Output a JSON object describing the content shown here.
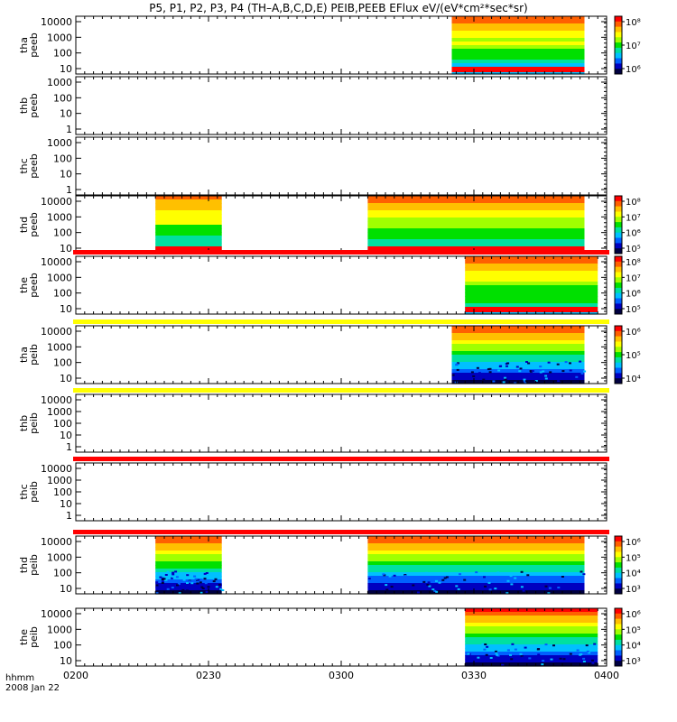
{
  "title": "P5, P1, P2, P3, P4 (TH–A,B,C,D,E) PEIB,PEEB EFlux eV/(eV*cm²*sec*sr)",
  "footer": {
    "label": "hhmm",
    "date": "2008 Jan 22"
  },
  "chart_data": {
    "type": "heatmap",
    "x_ticks": [
      "0200",
      "0230",
      "0300",
      "0330",
      "0400"
    ],
    "xlim": [
      "0200",
      "0400"
    ],
    "panels": [
      {
        "label_top": "tha",
        "label_bottom": "peeb",
        "y_ticks": [
          "10000",
          "1000",
          "100",
          "10"
        ],
        "cbar_ticks": [
          "10⁸",
          "10⁷",
          "10⁶"
        ],
        "has_data": true,
        "segments": [
          [
            "0325",
            "0356"
          ],
          [
            "0356",
            "0357"
          ],
          [
            "0357",
            "0356"
          ]
        ],
        "data_range": [
          "0325",
          "0355"
        ],
        "strip": null
      },
      {
        "label_top": "thb",
        "label_bottom": "peeb",
        "y_ticks": [
          "1000",
          "100",
          "10",
          "1"
        ],
        "cbar_ticks": [],
        "has_data": false,
        "strip": null
      },
      {
        "label_top": "thc",
        "label_bottom": "peeb",
        "y_ticks": [
          "1000",
          "100",
          "10",
          "1"
        ],
        "cbar_ticks": [],
        "has_data": false,
        "strip": null
      },
      {
        "label_top": "thd",
        "label_bottom": "peeb",
        "y_ticks": [
          "10000",
          "1000",
          "100",
          "10"
        ],
        "cbar_ticks": [
          "10⁸",
          "10⁷",
          "10⁶",
          "10⁵"
        ],
        "has_data": true,
        "data_ranges": [
          [
            "0218",
            "0233"
          ],
          [
            "0306",
            "0355"
          ]
        ],
        "strip": null
      },
      {
        "label_top": "the",
        "label_bottom": "peeb",
        "y_ticks": [
          "10000",
          "1000",
          "100",
          "10"
        ],
        "cbar_ticks": [
          "10⁸",
          "10⁷",
          "10⁶",
          "10⁵"
        ],
        "has_data": true,
        "data_ranges": [
          [
            "0328",
            "0358"
          ]
        ],
        "strip": "red"
      },
      {
        "label_top": "tha",
        "label_bottom": "peib",
        "y_ticks": [
          "10000",
          "1000",
          "100",
          "10"
        ],
        "cbar_ticks": [
          "10⁶",
          "10⁵",
          "10⁴"
        ],
        "has_data": true,
        "data_ranges": [
          [
            "0325",
            "0355"
          ]
        ],
        "strip": "yellow"
      },
      {
        "label_top": "thb",
        "label_bottom": "peib",
        "y_ticks": [
          "10000",
          "1000",
          "100",
          "10",
          "1"
        ],
        "cbar_ticks": [],
        "has_data": false,
        "strip": "yellow"
      },
      {
        "label_top": "thc",
        "label_bottom": "peib",
        "y_ticks": [
          "10000",
          "1000",
          "100",
          "10",
          "1"
        ],
        "cbar_ticks": [],
        "has_data": false,
        "strip": "red"
      },
      {
        "label_top": "thd",
        "label_bottom": "peib",
        "y_ticks": [
          "10000",
          "1000",
          "100",
          "10"
        ],
        "cbar_ticks": [
          "10⁶",
          "10⁵",
          "10⁴",
          "10³"
        ],
        "has_data": true,
        "data_ranges": [
          [
            "0218",
            "0233"
          ],
          [
            "0306",
            "0355"
          ]
        ],
        "strip": "red"
      },
      {
        "label_top": "the",
        "label_bottom": "peib",
        "y_ticks": [
          "10000",
          "1000",
          "100",
          "10"
        ],
        "cbar_ticks": [
          "10⁶",
          "10⁵",
          "10⁴",
          "10³"
        ],
        "has_data": true,
        "data_ranges": [
          [
            "0328",
            "0358"
          ]
        ],
        "strip": null
      }
    ],
    "colormap": [
      "#000040",
      "#0000c0",
      "#0060ff",
      "#00c0ff",
      "#00e0a0",
      "#00e000",
      "#a0ff00",
      "#ffff00",
      "#ffc000",
      "#ff6000",
      "#ff0000"
    ]
  }
}
